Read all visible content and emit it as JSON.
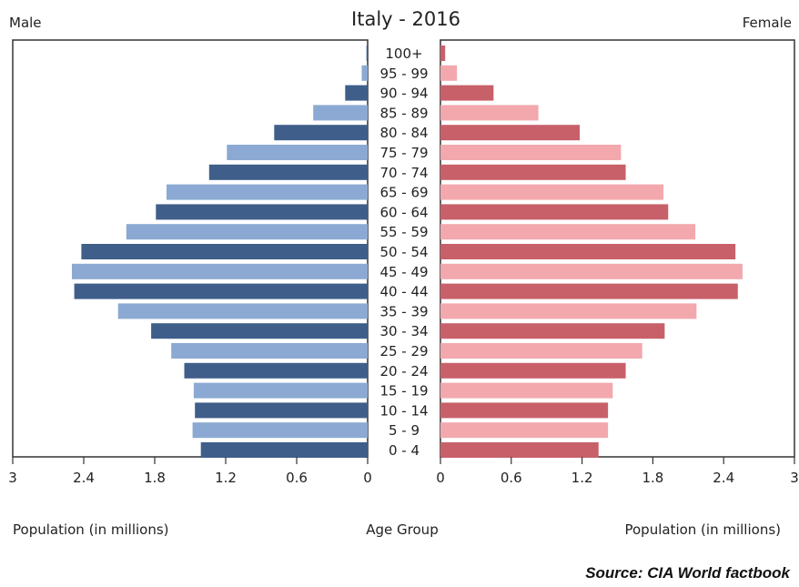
{
  "chart_data": {
    "type": "bar",
    "title": "Italy - 2016",
    "left_label": "Male",
    "right_label": "Female",
    "xlabel_left": "Population (in millions)",
    "xlabel_center": "Age Group",
    "xlabel_right": "Population (in millions)",
    "xlim": [
      0,
      3
    ],
    "ticks": [
      "3",
      "2.4",
      "1.8",
      "1.2",
      "0.6",
      "0",
      "0",
      "0.6",
      "1.2",
      "1.8",
      "2.4",
      "3"
    ],
    "tick_values": [
      3,
      2.4,
      1.8,
      1.2,
      0.6,
      0
    ],
    "categories": [
      "100+",
      "95 - 99",
      "90 - 94",
      "85 - 89",
      "80 - 84",
      "75 - 79",
      "70 - 74",
      "65 - 69",
      "60 - 64",
      "55 - 59",
      "50 - 54",
      "45 - 49",
      "40 - 44",
      "35 - 39",
      "30 - 34",
      "25 - 29",
      "20 - 24",
      "15 - 19",
      "10 - 14",
      "5 - 9",
      "0 - 4"
    ],
    "series": [
      {
        "values": [
          0.01,
          0.05,
          0.19,
          0.46,
          0.79,
          1.19,
          1.34,
          1.7,
          1.79,
          2.04,
          2.42,
          2.5,
          2.48,
          2.11,
          1.83,
          1.66,
          1.55,
          1.47,
          1.46,
          1.48,
          1.41
        ]
      },
      {
        "values": [
          0.04,
          0.14,
          0.45,
          0.83,
          1.18,
          1.53,
          1.57,
          1.89,
          1.93,
          2.16,
          2.5,
          2.56,
          2.52,
          2.17,
          1.9,
          1.71,
          1.57,
          1.46,
          1.42,
          1.42,
          1.34
        ]
      }
    ],
    "colors": {
      "male_dark": "#3f5f8a",
      "male_light": "#8ba9d2",
      "female_dark": "#c8606a",
      "female_light": "#f2a8ad"
    }
  },
  "source": "Source: CIA World factbook"
}
